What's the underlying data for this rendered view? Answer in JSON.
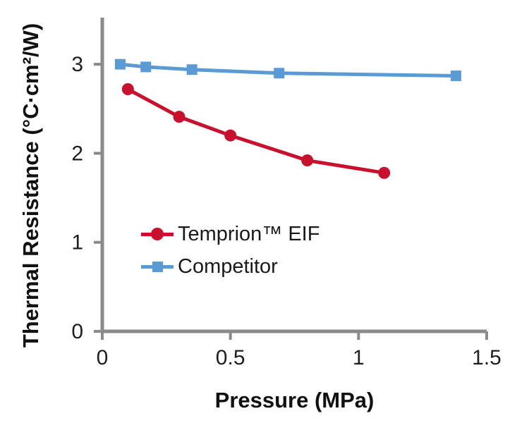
{
  "chart_data": {
    "type": "line",
    "title": "",
    "xlabel": "Pressure (MPa)",
    "ylabel": "Thermal Resistance (°C·cm²/W)",
    "xlim": [
      0,
      1.5
    ],
    "ylim": [
      0,
      3.5
    ],
    "x_ticks": [
      0,
      0.5,
      1,
      1.5
    ],
    "x_tick_labels": [
      "0",
      "0.5",
      "1",
      "1.5"
    ],
    "y_ticks": [
      0,
      1,
      2,
      3
    ],
    "y_tick_labels": [
      "0",
      "1",
      "2",
      "3"
    ],
    "grid": false,
    "legend_position": "inside-left",
    "axis_color": "#8a8a8a",
    "text_color": "#1a1a1a",
    "background_color": "#ffffff",
    "series": [
      {
        "name": "Temprion™ EIF",
        "marker": "circle",
        "color": "#c9102c",
        "x": [
          0.1,
          0.3,
          0.5,
          0.8,
          1.1
        ],
        "y": [
          2.72,
          2.41,
          2.2,
          1.92,
          1.78
        ]
      },
      {
        "name": "Competitor",
        "marker": "square",
        "color": "#5b9bd5",
        "x": [
          0.07,
          0.17,
          0.35,
          0.69,
          1.38
        ],
        "y": [
          3.0,
          2.97,
          2.94,
          2.9,
          2.87
        ]
      }
    ]
  }
}
